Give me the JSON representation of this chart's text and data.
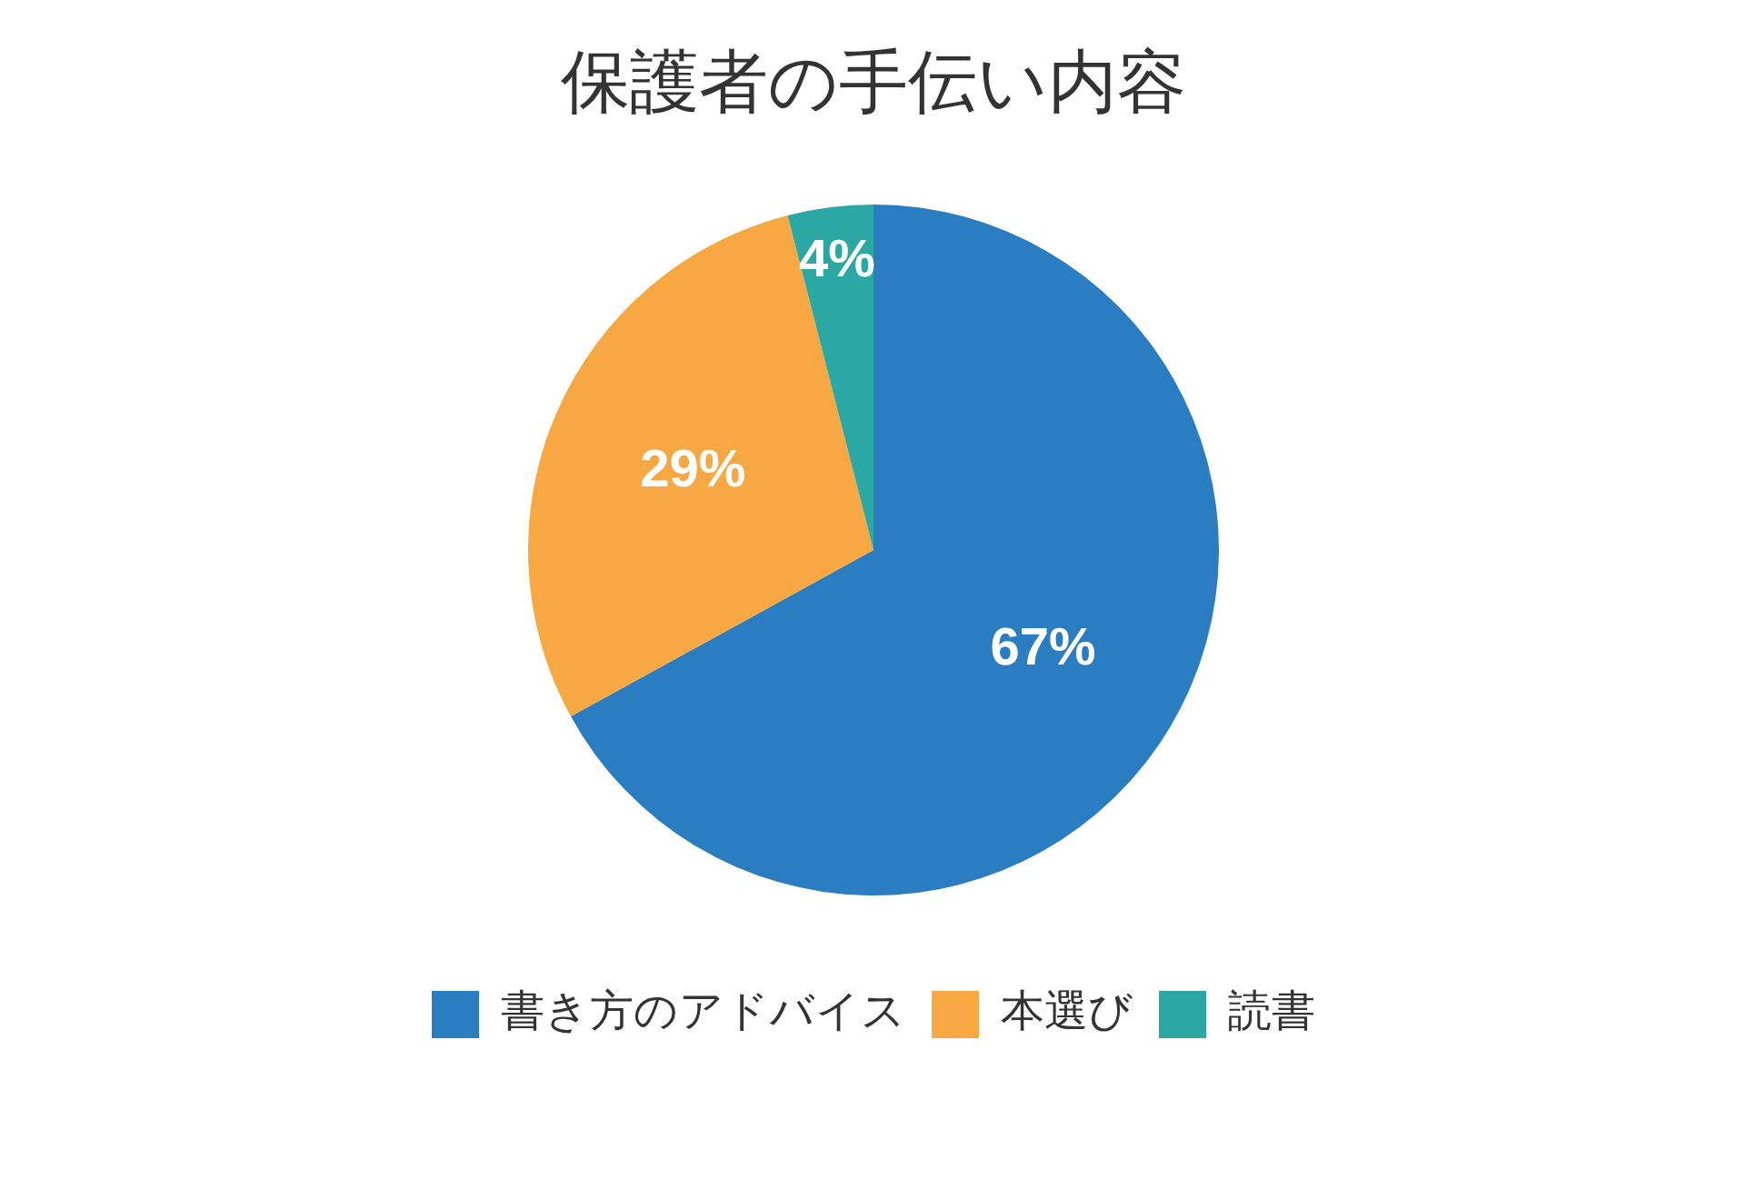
{
  "chart_data": {
    "type": "pie",
    "title": "保護者の手伝い内容",
    "categories": [
      "書き方のアドバイス",
      "本選び",
      "読書"
    ],
    "values": [
      67,
      29,
      4
    ],
    "colors": [
      "#2a7dc1",
      "#f8a843",
      "#2ba8a4"
    ],
    "value_labels": [
      "67%",
      "29%",
      "4%"
    ],
    "legend": "bottom"
  }
}
